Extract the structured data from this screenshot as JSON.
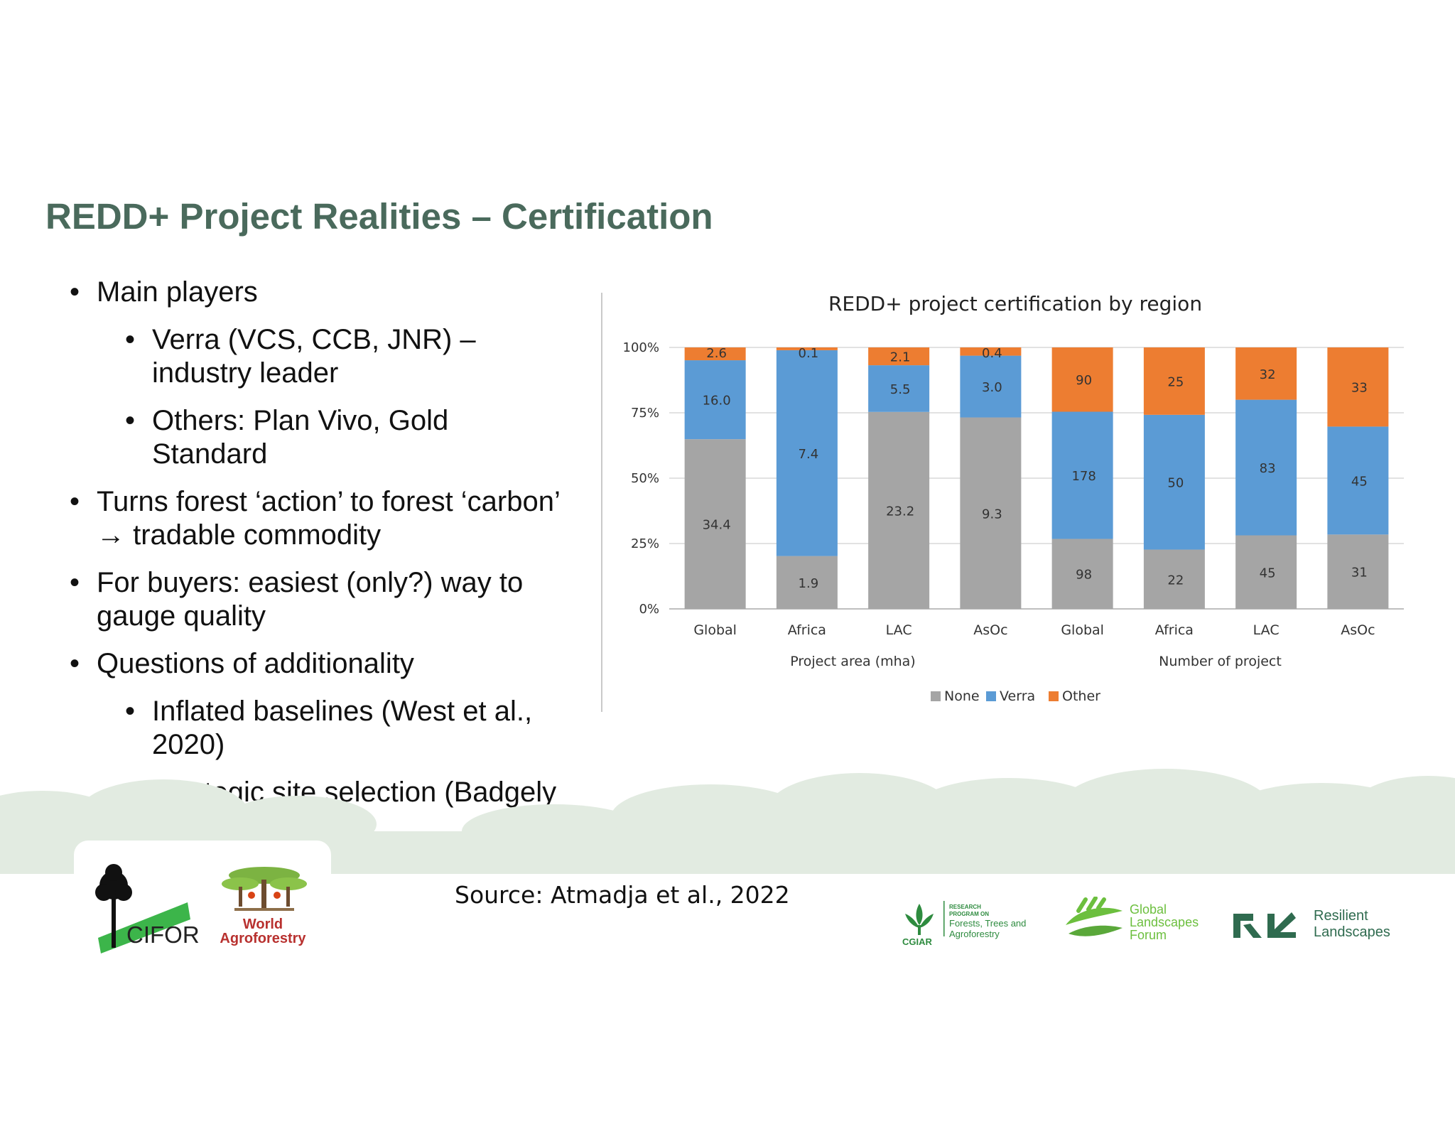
{
  "slide": {
    "title": "REDD+ Project Realities – Certification",
    "bullets": [
      {
        "level": 1,
        "text": "Main players"
      },
      {
        "level": 2,
        "text": "Verra (VCS, CCB, JNR) – industry leader"
      },
      {
        "level": 2,
        "text": "Others: Plan Vivo, Gold Standard"
      },
      {
        "level": 1,
        "text": "Turns forest ‘action’ to forest ‘carbon’ → tradable commodity"
      },
      {
        "level": 1,
        "text": "For buyers: easiest (only?) way to gauge quality"
      },
      {
        "level": 1,
        "text": "Questions of additionality"
      },
      {
        "level": 2,
        "text": "Inflated baselines (West et al., 2020)"
      },
      {
        "level": 2,
        "text": "Strategic site selection (Badgely et al., 2021)"
      }
    ],
    "source": "Source: Atmadja et al., 2022"
  },
  "logos": {
    "cifor": "CIFOR",
    "world_agroforestry": [
      "World",
      "Agroforestry"
    ],
    "cgiar_name": "CGIAR",
    "cgiar_program_small": [
      "RESEARCH",
      "PROGRAM ON"
    ],
    "cgiar_program": [
      "Forests, Trees and",
      "Agroforestry"
    ],
    "glf": [
      "Global",
      "Landscapes",
      "Forum"
    ],
    "resilient_landscapes": [
      "Resilient",
      "Landscapes"
    ]
  },
  "chart_data": {
    "type": "bar",
    "stacked": "percent",
    "title": "REDD+ project certification by region",
    "categories": [
      "Global",
      "Africa",
      "LAC",
      "AsOc",
      "Global",
      "Africa",
      "LAC",
      "AsOc"
    ],
    "groups": [
      {
        "label": "Project area (mha)",
        "categories": [
          0,
          1,
          2,
          3
        ]
      },
      {
        "label": "Number of project",
        "categories": [
          4,
          5,
          6,
          7
        ]
      }
    ],
    "series": [
      {
        "name": "None",
        "color": "#a5a5a5",
        "values": [
          34.4,
          1.9,
          23.2,
          9.3,
          98,
          22,
          45,
          31
        ]
      },
      {
        "name": "Verra",
        "color": "#5b9bd5",
        "values": [
          16.0,
          7.4,
          5.5,
          3.0,
          178,
          50,
          83,
          45
        ]
      },
      {
        "name": "Other",
        "color": "#ed7d31",
        "values": [
          2.6,
          0.1,
          2.1,
          0.4,
          90,
          25,
          32,
          33
        ]
      }
    ],
    "yticks": [
      "0%",
      "25%",
      "50%",
      "75%",
      "100%"
    ],
    "ylim": [
      0,
      100
    ],
    "grid": true,
    "legend": "bottom"
  }
}
